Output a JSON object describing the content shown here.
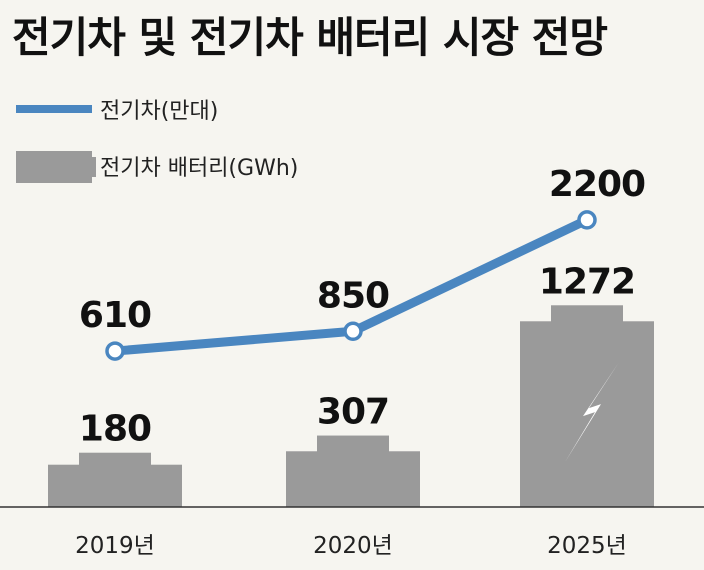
{
  "title": "전기차 및 전기차 배터리 시장 전망",
  "colors": {
    "line": "#4a86c0",
    "bar": "#9a9a9a",
    "background": "#f6f5f0",
    "text": "#111111"
  },
  "chart_data": {
    "type": "bar",
    "categories": [
      "2019년",
      "2020년",
      "2025년"
    ],
    "series": [
      {
        "name": "전기차 배터리(GWh)",
        "type": "bar",
        "values": [
          180,
          307,
          1272
        ]
      },
      {
        "name": "전기차(만대)",
        "type": "line",
        "values": [
          610,
          850,
          2200
        ]
      }
    ],
    "legend": [
      "전기차(만대)",
      "전기차 배터리(GWh)"
    ],
    "legend_position": "top-left",
    "grid": false
  }
}
